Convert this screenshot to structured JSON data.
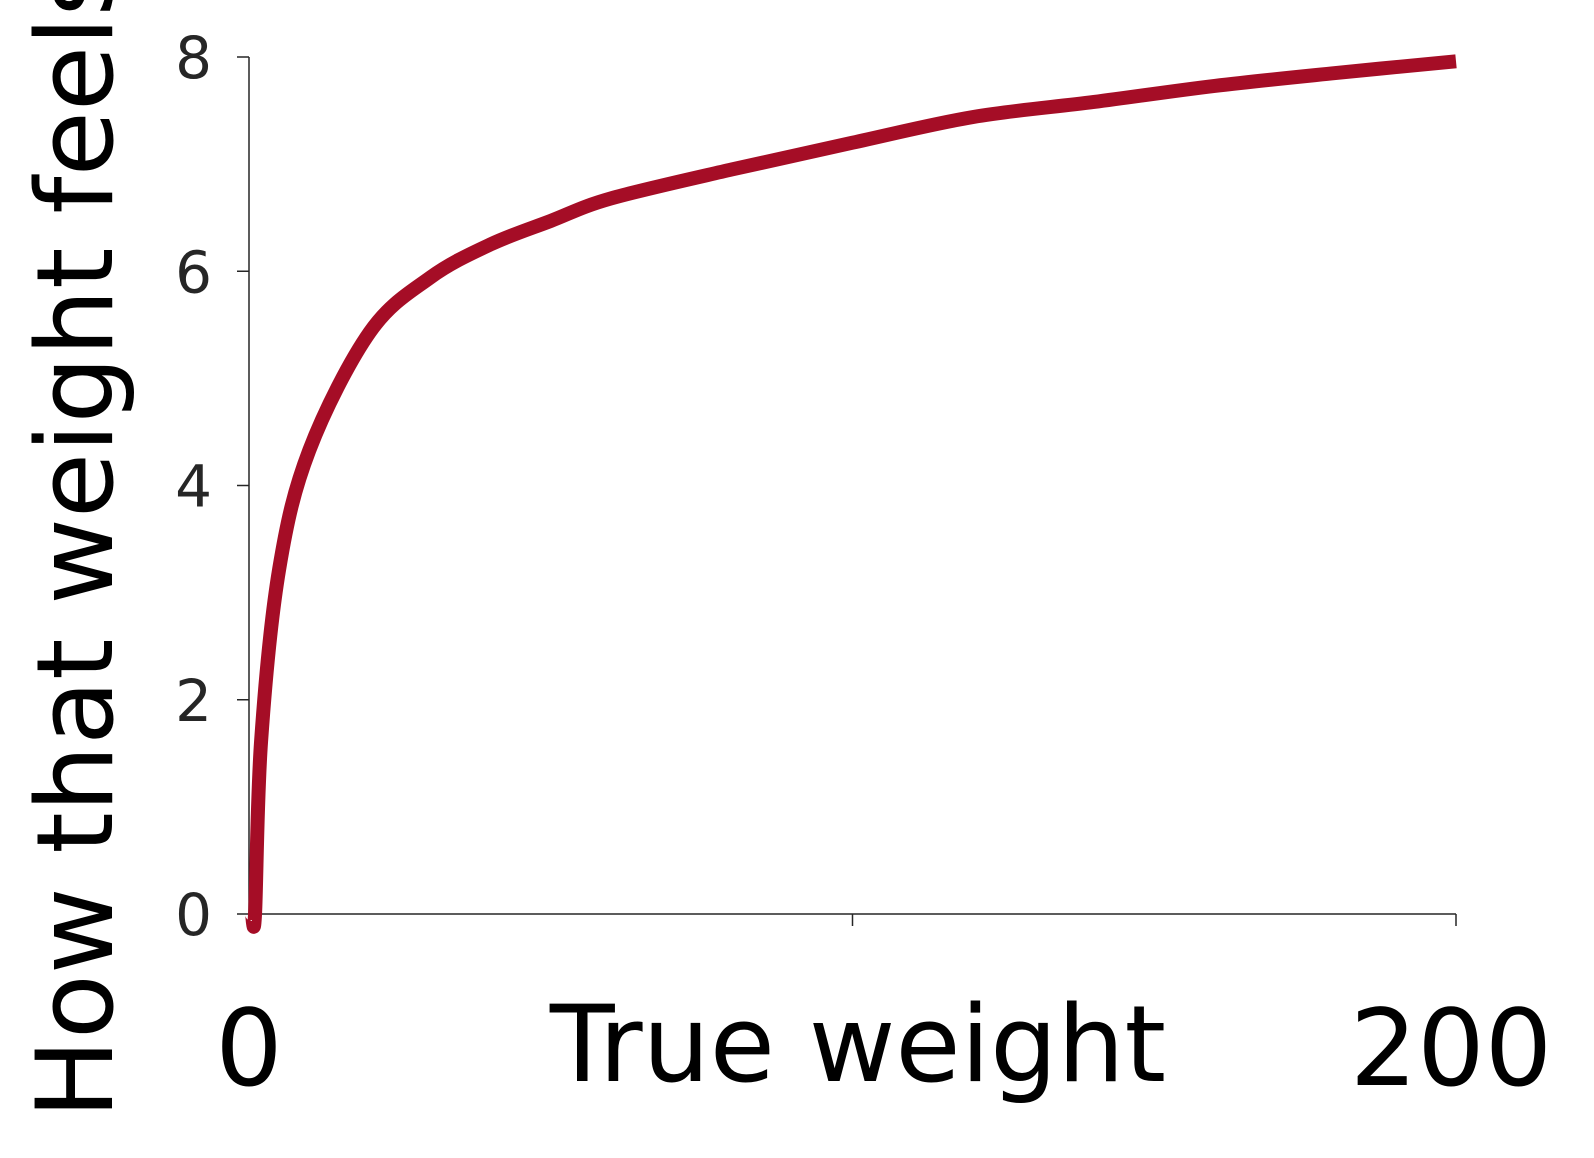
{
  "chart_data": {
    "type": "line",
    "title": "",
    "xlabel": "True weight",
    "ylabel": "How that weight feels",
    "xlim": [
      0,
      200
    ],
    "ylim": [
      0,
      8
    ],
    "x_tick_labels": [
      "0",
      "200"
    ],
    "y_tick_labels": [
      "0",
      "2",
      "4",
      "6",
      "8"
    ],
    "grid": false,
    "legend": "none",
    "series": [
      {
        "color": "#a50d26",
        "function": "log",
        "x": [
          1,
          2,
          5,
          10,
          20,
          30,
          40,
          50,
          60,
          80,
          100,
          120,
          140,
          160,
          180,
          200
        ],
        "y": [
          0.0,
          1.61,
          3.22,
          4.33,
          5.43,
          5.94,
          6.25,
          6.47,
          6.68,
          6.95,
          7.2,
          7.44,
          7.58,
          7.73,
          7.85,
          7.96
        ]
      }
    ]
  }
}
